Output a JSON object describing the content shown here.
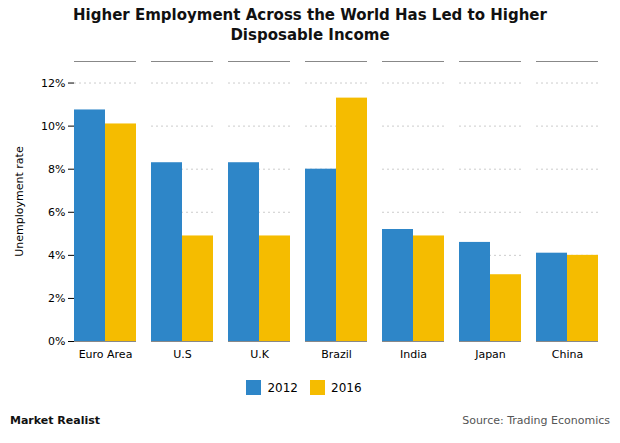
{
  "chart_data": {
    "type": "bar",
    "title": "Higher Employment Across the World Has Led to Higher\nDisposable Income",
    "ylabel": "Unemployment rate",
    "categories": [
      "Euro Area",
      "U.S",
      "U.K",
      "Brazil",
      "India",
      "Japan",
      "China"
    ],
    "series": [
      {
        "name": "2012",
        "color": "#2E86C8",
        "values": [
          10.75,
          8.3,
          8.3,
          8.0,
          5.2,
          4.6,
          4.1
        ]
      },
      {
        "name": "2016",
        "color": "#F5BC00",
        "values": [
          10.1,
          4.9,
          4.9,
          11.3,
          4.9,
          3.1,
          4.0
        ]
      }
    ],
    "ylim": [
      0,
      13
    ],
    "yticks": [
      {
        "value": 0,
        "label": "0%"
      },
      {
        "value": 2,
        "label": "2%"
      },
      {
        "value": 4,
        "label": "4%"
      },
      {
        "value": 6,
        "label": "6%"
      },
      {
        "value": 8,
        "label": "8%"
      },
      {
        "value": 10,
        "label": "10%"
      },
      {
        "value": 12,
        "label": "12%"
      }
    ],
    "grid": true,
    "legend": "bottom",
    "annotations": [
      "Market Realist",
      "Source: Trading Economics"
    ]
  }
}
